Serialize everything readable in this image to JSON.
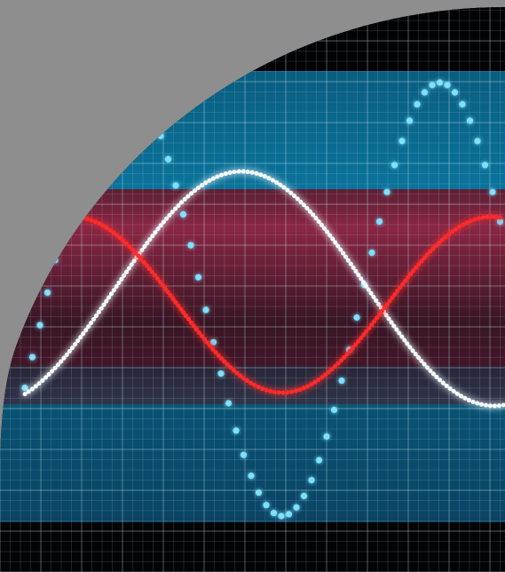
{
  "image": {
    "title": "",
    "colors": {
      "page_gray": "#8d8e8d",
      "screen_black": "#050506",
      "blue_band": "#0b6f97",
      "blue_band_mid": "#0a4f6e",
      "red_band": "#7b1634",
      "teal_band": "#12485a",
      "grid_line": "#d7f5ff",
      "dotted_wave": "#7fe4ff",
      "white_wave": "#f2fbff",
      "red_wave": "#ff2626"
    },
    "visual_elements": [
      "oscilloscope-screen",
      "grid-overlay",
      "blue-signal-band",
      "red-signal-band",
      "dotted-blue-wave",
      "white-sine-wave",
      "red-sine-wave"
    ]
  }
}
